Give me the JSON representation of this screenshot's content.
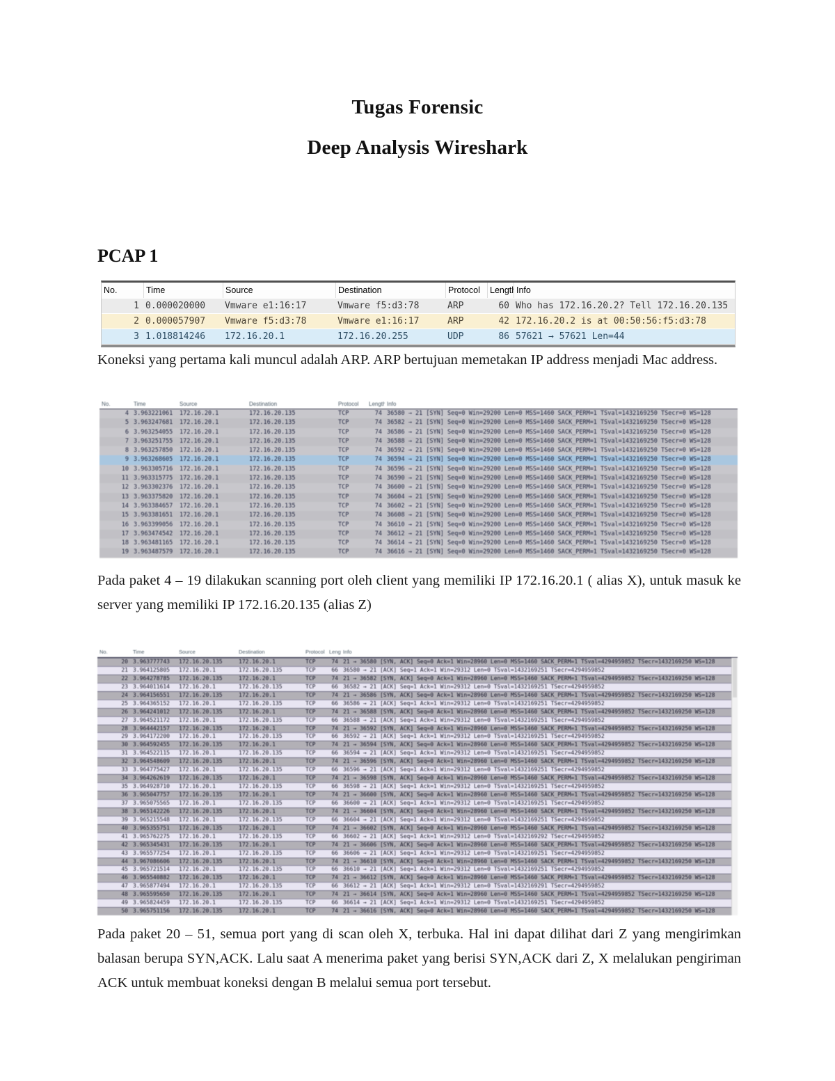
{
  "document": {
    "title_line1": "Tugas Forensic",
    "title_line2": "Deep Analysis Wireshark",
    "section_heading": "PCAP 1",
    "paragraph1": "Koneksi yang pertama  kali muncul adalah ARP. ARP bertujuan memetakan IP address menjadi Mac address.",
    "paragraph2": "Pada paket 4 – 19 dilakukan scanning port oleh client yang memiliki IP 172.16.20.1 ( alias X),  untuk masuk ke server yang memiliki IP 172.16.20.135 (alias Z)",
    "paragraph3": "Pada paket 20 – 51, semua port yang di scan oleh X, terbuka. Hal ini dapat dilihat dari Z yang mengirimkan balasan berupa SYN,ACK. Lalu saat A menerima paket yang berisi SYN,ACK dari Z, X melalukan pengiriman ACK untuk membuat koneksi dengan B melalui semua port tersebut."
  },
  "colors": {
    "row_light_gray": "#ebebeb",
    "arp_row": "#faf0d2",
    "udp_row": "#d9ecf8",
    "syn_row_gray": "#c1c0c5",
    "syn_row_gray2": "#c8c7cc",
    "selected_row": "#a9c7e0",
    "synack_row": "#b2b0b6",
    "ack_row": "#e8e5f2"
  },
  "tables": {
    "table1": {
      "columns": [
        "No.",
        "Time",
        "Source",
        "Destination",
        "Protocol",
        "Length",
        "Info"
      ],
      "rows": [
        {
          "c": "plain",
          "cells": [
            "1",
            "0.000020000",
            "Vmware e1:16:17",
            "Vmware f5:d3:78",
            "ARP",
            "60",
            "Who has 172.16.20.2? Tell 172.16.20.135"
          ]
        },
        {
          "c": "arp",
          "cells": [
            "2",
            "0.000057907",
            "Vmware f5:d3:78",
            "Vmware e1:16:17",
            "ARP",
            "42",
            "172.16.20.2 is at 00:50:56:f5:d3:78"
          ]
        },
        {
          "c": "udp",
          "cells": [
            "3",
            "1.018814246",
            "172.16.20.1",
            "172.16.20.255",
            "UDP",
            "86",
            "57621 → 57621 Len=44"
          ]
        }
      ]
    },
    "table2": {
      "columns": [
        "No.",
        "Time",
        "Source",
        "Destination",
        "Protocol",
        "Length",
        "Info"
      ],
      "rows": [
        {
          "c": "syn",
          "cells": [
            "4",
            "3.963221061",
            "172.16.20.1",
            "172.16.20.135",
            "TCP",
            "74",
            "36580 → 21 [SYN] Seq=0 Win=29200 Len=0 MSS=1460 SACK_PERM=1 TSval=1432169250 TSecr=0 WS=128"
          ]
        },
        {
          "c": "syn",
          "cells": [
            "5",
            "3.963247681",
            "172.16.20.1",
            "172.16.20.135",
            "TCP",
            "74",
            "36582 → 21 [SYN] Seq=0 Win=29200 Len=0 MSS=1460 SACK_PERM=1 TSval=1432169250 TSecr=0 WS=128"
          ]
        },
        {
          "c": "syn",
          "cells": [
            "6",
            "3.963254055",
            "172.16.20.1",
            "172.16.20.135",
            "TCP",
            "74",
            "36586 → 21 [SYN] Seq=0 Win=29200 Len=0 MSS=1460 SACK_PERM=1 TSval=1432169250 TSecr=0 WS=128"
          ]
        },
        {
          "c": "syn",
          "cells": [
            "7",
            "3.963251755",
            "172.16.20.1",
            "172.16.20.135",
            "TCP",
            "74",
            "36588 → 21 [SYN] Seq=0 Win=29200 Len=0 MSS=1460 SACK_PERM=1 TSval=1432169250 TSecr=0 WS=128"
          ]
        },
        {
          "c": "syn",
          "cells": [
            "8",
            "3.963257850",
            "172.16.20.1",
            "172.16.20.135",
            "TCP",
            "74",
            "36592 → 21 [SYN] Seq=0 Win=29200 Len=0 MSS=1460 SACK_PERM=1 TSval=1432169250 TSecr=0 WS=128"
          ]
        },
        {
          "c": "sel",
          "cells": [
            "9",
            "3.963268605",
            "172.16.20.1",
            "172.16.20.135",
            "TCP",
            "74",
            "36594 → 21 [SYN] Seq=0 Win=29200 Len=0 MSS=1460 SACK_PERM=1 TSval=1432169250 TSecr=0 WS=128"
          ]
        },
        {
          "c": "syn",
          "cells": [
            "10",
            "3.963305716",
            "172.16.20.1",
            "172.16.20.135",
            "TCP",
            "74",
            "36596 → 21 [SYN] Seq=0 Win=29200 Len=0 MSS=1460 SACK_PERM=1 TSval=1432169250 TSecr=0 WS=128"
          ]
        },
        {
          "c": "syn",
          "cells": [
            "11",
            "3.963315775",
            "172.16.20.1",
            "172.16.20.135",
            "TCP",
            "74",
            "36590 → 21 [SYN] Seq=0 Win=29200 Len=0 MSS=1460 SACK_PERM=1 TSval=1432169250 TSecr=0 WS=128"
          ]
        },
        {
          "c": "syn",
          "cells": [
            "12",
            "3.963302376",
            "172.16.20.1",
            "172.16.20.135",
            "TCP",
            "74",
            "36600 → 21 [SYN] Seq=0 Win=29200 Len=0 MSS=1460 SACK_PERM=1 TSval=1432169250 TSecr=0 WS=128"
          ]
        },
        {
          "c": "syn",
          "cells": [
            "13",
            "3.963375820",
            "172.16.20.1",
            "172.16.20.135",
            "TCP",
            "74",
            "36604 → 21 [SYN] Seq=0 Win=29200 Len=0 MSS=1460 SACK_PERM=1 TSval=1432169250 TSecr=0 WS=128"
          ]
        },
        {
          "c": "syn",
          "cells": [
            "14",
            "3.963384657",
            "172.16.20.1",
            "172.16.20.135",
            "TCP",
            "74",
            "36602 → 21 [SYN] Seq=0 Win=29200 Len=0 MSS=1460 SACK_PERM=1 TSval=1432169250 TSecr=0 WS=128"
          ]
        },
        {
          "c": "syn",
          "cells": [
            "15",
            "3.963381651",
            "172.16.20.1",
            "172.16.20.135",
            "TCP",
            "74",
            "36608 → 21 [SYN] Seq=0 Win=29200 Len=0 MSS=1460 SACK_PERM=1 TSval=1432169250 TSecr=0 WS=128"
          ]
        },
        {
          "c": "syn",
          "cells": [
            "16",
            "3.963399056",
            "172.16.20.1",
            "172.16.20.135",
            "TCP",
            "74",
            "36610 → 21 [SYN] Seq=0 Win=29200 Len=0 MSS=1460 SACK_PERM=1 TSval=1432169250 TSecr=0 WS=128"
          ]
        },
        {
          "c": "syn",
          "cells": [
            "17",
            "3.963474542",
            "172.16.20.1",
            "172.16.20.135",
            "TCP",
            "74",
            "36612 → 21 [SYN] Seq=0 Win=29200 Len=0 MSS=1460 SACK_PERM=1 TSval=1432169250 TSecr=0 WS=128"
          ]
        },
        {
          "c": "syn",
          "cells": [
            "18",
            "3.963481165",
            "172.16.20.1",
            "172.16.20.135",
            "TCP",
            "74",
            "36614 → 21 [SYN] Seq=0 Win=29200 Len=0 MSS=1460 SACK_PERM=1 TSval=1432169250 TSecr=0 WS=128"
          ]
        },
        {
          "c": "syn",
          "cells": [
            "19",
            "3.963487579",
            "172.16.20.1",
            "172.16.20.135",
            "TCP",
            "74",
            "36616 → 21 [SYN] Seq=0 Win=29200 Len=0 MSS=1460 SACK_PERM=1 TSval=1432169250 TSecr=0 WS=128"
          ]
        }
      ]
    },
    "table3": {
      "columns": [
        "No.",
        "Time",
        "Source",
        "Destination",
        "Protocol",
        "Length",
        "Info"
      ],
      "rows": [
        {
          "c": "synack",
          "cells": [
            "20",
            "3.963777743",
            "172.16.20.135",
            "172.16.20.1",
            "TCP",
            "74",
            "21 → 36580 [SYN, ACK] Seq=0 Ack=1 Win=28960 Len=0 MSS=1460 SACK_PERM=1 TSval=4294959852 TSecr=1432169250 WS=128"
          ]
        },
        {
          "c": "ack",
          "cells": [
            "21",
            "3.964125805",
            "172.16.20.1",
            "172.16.20.135",
            "TCP",
            "66",
            "36580 → 21 [ACK] Seq=1 Ack=1 Win=29312 Len=0 TSval=1432169251 TSecr=4294959852"
          ]
        },
        {
          "c": "synack",
          "cells": [
            "22",
            "3.964278785",
            "172.16.20.135",
            "172.16.20.1",
            "TCP",
            "74",
            "21 → 36582 [SYN, ACK] Seq=0 Ack=1 Win=28960 Len=0 MSS=1460 SACK_PERM=1 TSval=4294959852 TSecr=1432169250 WS=128"
          ]
        },
        {
          "c": "ack",
          "cells": [
            "23",
            "3.964011614",
            "172.16.20.1",
            "172.16.20.135",
            "TCP",
            "66",
            "36582 → 21 [ACK] Seq=1 Ack=1 Win=29312 Len=0 TSval=1432169251 TSecr=4294959852"
          ]
        },
        {
          "c": "synack",
          "cells": [
            "24",
            "3.964156551",
            "172.16.20.135",
            "172.16.20.1",
            "TCP",
            "74",
            "21 → 36586 [SYN, ACK] Seq=0 Ack=1 Win=28960 Len=0 MSS=1460 SACK_PERM=1 TSval=4294959852 TSecr=1432169250 WS=128"
          ]
        },
        {
          "c": "ack",
          "cells": [
            "25",
            "3.964365152",
            "172.16.20.1",
            "172.16.20.135",
            "TCP",
            "66",
            "36586 → 21 [ACK] Seq=1 Ack=1 Win=29312 Len=0 TSval=1432169251 TSecr=4294959852"
          ]
        },
        {
          "c": "synack",
          "cells": [
            "26",
            "3.964241012",
            "172.16.20.135",
            "172.16.20.1",
            "TCP",
            "74",
            "21 → 36588 [SYN, ACK] Seq=0 Ack=1 Win=28960 Len=0 MSS=1460 SACK_PERM=1 TSval=4294959852 TSecr=1432169250 WS=128"
          ]
        },
        {
          "c": "ack",
          "cells": [
            "27",
            "3.964521172",
            "172.16.20.1",
            "172.16.20.135",
            "TCP",
            "66",
            "36588 → 21 [ACK] Seq=1 Ack=1 Win=29312 Len=0 TSval=1432169251 TSecr=4294959852"
          ]
        },
        {
          "c": "synack",
          "cells": [
            "28",
            "3.964442157",
            "172.16.20.135",
            "172.16.20.1",
            "TCP",
            "74",
            "21 → 36592 [SYN, ACK] Seq=0 Ack=1 Win=28960 Len=0 MSS=1460 SACK_PERM=1 TSval=4294959852 TSecr=1432169250 WS=128"
          ]
        },
        {
          "c": "ack",
          "cells": [
            "29",
            "3.964172200",
            "172.16.20.1",
            "172.16.20.135",
            "TCP",
            "66",
            "36592 → 21 [ACK] Seq=1 Ack=1 Win=29312 Len=0 TSval=1432169251 TSecr=4294959852"
          ]
        },
        {
          "c": "synack",
          "cells": [
            "30",
            "3.964592455",
            "172.16.20.135",
            "172.16.20.1",
            "TCP",
            "74",
            "21 → 36594 [SYN, ACK] Seq=0 Ack=1 Win=28960 Len=0 MSS=1460 SACK_PERM=1 TSval=4294959852 TSecr=1432169250 WS=128"
          ]
        },
        {
          "c": "ack",
          "cells": [
            "31",
            "3.964522115",
            "172.16.20.1",
            "172.16.20.135",
            "TCP",
            "66",
            "36594 → 21 [ACK] Seq=1 Ack=1 Win=29312 Len=0 TSval=1432169251 TSecr=4294959852"
          ]
        },
        {
          "c": "synack",
          "cells": [
            "32",
            "3.964548609",
            "172.16.20.135",
            "172.16.20.1",
            "TCP",
            "74",
            "21 → 36596 [SYN, ACK] Seq=0 Ack=1 Win=28960 Len=0 MSS=1460 SACK_PERM=1 TSval=4294959852 TSecr=1432169250 WS=128"
          ]
        },
        {
          "c": "ack",
          "cells": [
            "33",
            "3.964775427",
            "172.16.20.1",
            "172.16.20.135",
            "TCP",
            "66",
            "36596 → 21 [ACK] Seq=1 Ack=1 Win=29312 Len=0 TSval=1432169251 TSecr=4294959852"
          ]
        },
        {
          "c": "synack",
          "cells": [
            "34",
            "3.964262619",
            "172.16.20.135",
            "172.16.20.1",
            "TCP",
            "74",
            "21 → 36598 [SYN, ACK] Seq=0 Ack=1 Win=28960 Len=0 MSS=1460 SACK_PERM=1 TSval=4294959852 TSecr=1432169250 WS=128"
          ]
        },
        {
          "c": "ack",
          "cells": [
            "35",
            "3.964928710",
            "172.16.20.1",
            "172.16.20.135",
            "TCP",
            "66",
            "36598 → 21 [ACK] Seq=1 Ack=1 Win=29312 Len=0 TSval=1432169251 TSecr=4294959852"
          ]
        },
        {
          "c": "synack",
          "cells": [
            "36",
            "3.965047757",
            "172.16.20.135",
            "172.16.20.1",
            "TCP",
            "74",
            "21 → 36600 [SYN, ACK] Seq=0 Ack=1 Win=28960 Len=0 MSS=1460 SACK_PERM=1 TSval=4294959852 TSecr=1432169250 WS=128"
          ]
        },
        {
          "c": "ack",
          "cells": [
            "37",
            "3.965075565",
            "172.16.20.1",
            "172.16.20.135",
            "TCP",
            "66",
            "36600 → 21 [ACK] Seq=1 Ack=1 Win=29312 Len=0 TSval=1432169251 TSecr=4294959852"
          ]
        },
        {
          "c": "synack",
          "cells": [
            "38",
            "3.965142226",
            "172.16.20.135",
            "172.16.20.1",
            "TCP",
            "74",
            "21 → 36604 [SYN, ACK] Seq=0 Ack=1 Win=28960 Len=0 MSS=1460 SACK_PERM=1 TSval=4294959852 TSecr=1432169250 WS=128"
          ]
        },
        {
          "c": "ack",
          "cells": [
            "39",
            "3.965215548",
            "172.16.20.1",
            "172.16.20.135",
            "TCP",
            "66",
            "36604 → 21 [ACK] Seq=1 Ack=1 Win=29312 Len=0 TSval=1432169251 TSecr=4294959852"
          ]
        },
        {
          "c": "synack",
          "cells": [
            "40",
            "3.965355751",
            "172.16.20.135",
            "172.16.20.1",
            "TCP",
            "74",
            "21 → 36602 [SYN, ACK] Seq=0 Ack=1 Win=28960 Len=0 MSS=1460 SACK_PERM=1 TSval=4294959852 TSecr=1432169250 WS=128"
          ]
        },
        {
          "c": "ack",
          "cells": [
            "41",
            "3.965762275",
            "172.16.20.1",
            "172.16.20.135",
            "TCP",
            "66",
            "36602 → 21 [ACK] Seq=1 Ack=1 Win=29312 Len=0 TSval=1432169292 TSecr=4294959852"
          ]
        },
        {
          "c": "synack",
          "cells": [
            "42",
            "3.965345431",
            "172.16.20.135",
            "172.16.20.1",
            "TCP",
            "74",
            "21 → 36606 [SYN, ACK] Seq=0 Ack=1 Win=28960 Len=0 MSS=1460 SACK_PERM=1 TSval=4294959852 TSecr=1432169250 WS=128"
          ]
        },
        {
          "c": "ack",
          "cells": [
            "43",
            "3.965577254",
            "172.16.20.1",
            "172.16.20.135",
            "TCP",
            "66",
            "36606 → 21 [ACK] Seq=1 Ack=1 Win=29312 Len=0 TSval=1432169251 TSecr=4294959852"
          ]
        },
        {
          "c": "synack",
          "cells": [
            "44",
            "3.967086606",
            "172.16.20.135",
            "172.16.20.1",
            "TCP",
            "74",
            "21 → 36610 [SYN, ACK] Seq=0 Ack=1 Win=28960 Len=0 MSS=1460 SACK_PERM=1 TSval=4294959852 TSecr=1432169250 WS=128"
          ]
        },
        {
          "c": "ack",
          "cells": [
            "45",
            "3.965721514",
            "172.16.20.1",
            "172.16.20.135",
            "TCP",
            "66",
            "36610 → 21 [ACK] Seq=1 Ack=1 Win=29312 Len=0 TSval=1432169251 TSecr=4294959852"
          ]
        },
        {
          "c": "synack",
          "cells": [
            "46",
            "3.965540882",
            "172.16.20.135",
            "172.16.20.1",
            "TCP",
            "74",
            "21 → 36612 [SYN, ACK] Seq=0 Ack=1 Win=28960 Len=0 MSS=1460 SACK_PERM=1 TSval=4294959852 TSecr=1432169250 WS=128"
          ]
        },
        {
          "c": "ack",
          "cells": [
            "47",
            "3.965877494",
            "172.16.20.1",
            "172.16.20.135",
            "TCP",
            "66",
            "36612 → 21 [ACK] Seq=1 Ack=1 Win=29312 Len=0 TSval=1432169291 TSecr=4294959852"
          ]
        },
        {
          "c": "synack",
          "cells": [
            "48",
            "3.965595650",
            "172.16.20.135",
            "172.16.20.1",
            "TCP",
            "74",
            "21 → 36614 [SYN, ACK] Seq=0 Ack=1 Win=28960 Len=0 MSS=1460 SACK_PERM=1 TSval=4294959852 TSecr=1432169250 WS=128"
          ]
        },
        {
          "c": "ack",
          "cells": [
            "49",
            "3.965824459",
            "172.16.20.1",
            "172.16.20.135",
            "TCP",
            "66",
            "36614 → 21 [ACK] Seq=1 Ack=1 Win=29312 Len=0 TSval=1432169251 TSecr=4294959852"
          ]
        },
        {
          "c": "synack",
          "cells": [
            "50",
            "3.965751156",
            "172.16.20.135",
            "172.16.20.1",
            "TCP",
            "74",
            "21 → 36616 [SYN, ACK] Seq=0 Ack=1 Win=28960 Len=0 MSS=1460 SACK_PERM=1 TSval=4294959852 TSecr=1432169250 WS=128"
          ]
        }
      ]
    }
  }
}
